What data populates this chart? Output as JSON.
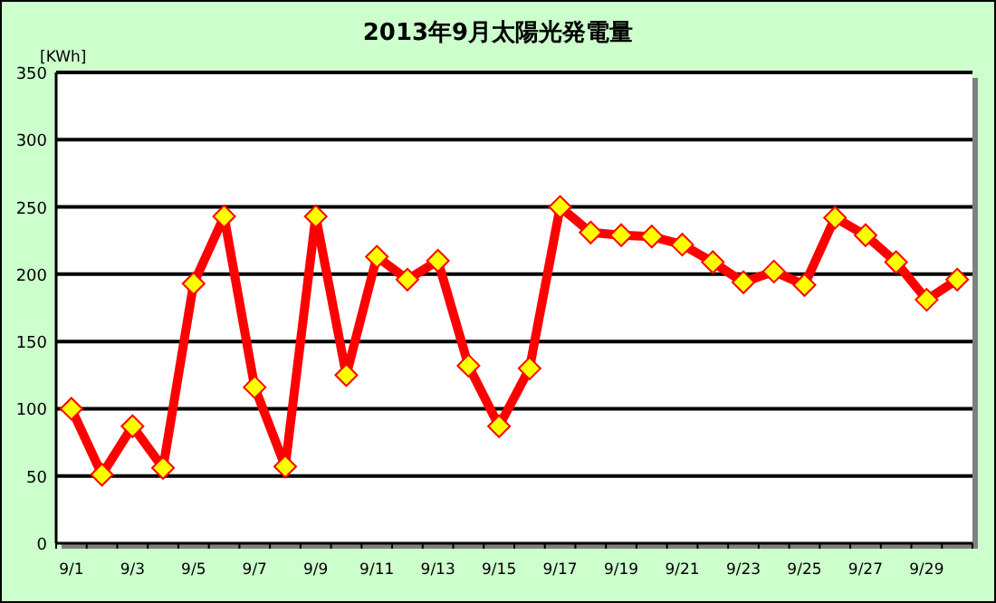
{
  "chart_data": {
    "type": "line",
    "title": "2013年9月太陽光発電量",
    "ylabel": "[KWh]",
    "categories": [
      "9/1",
      null,
      "9/3",
      null,
      "9/5",
      null,
      "9/7",
      null,
      "9/9",
      null,
      "9/11",
      null,
      "9/13",
      null,
      "9/15",
      null,
      "9/17",
      null,
      "9/19",
      null,
      "9/21",
      null,
      "9/23",
      null,
      "9/25",
      null,
      "9/27",
      null,
      "9/29",
      null
    ],
    "series": [
      {
        "color": "#ff0000",
        "values": [
          100,
          51,
          87,
          56,
          193,
          243,
          116,
          57,
          243,
          125,
          213,
          196,
          210,
          132,
          87,
          130,
          250,
          231,
          229,
          228,
          222,
          209,
          194,
          202,
          192,
          242,
          229,
          209,
          181,
          196
        ]
      }
    ],
    "ylim": [
      0,
      350
    ],
    "yticks": [
      0,
      50,
      100,
      150,
      200,
      250,
      300,
      350
    ],
    "grid": "y",
    "marker": "diamond",
    "line_style": "solid"
  }
}
